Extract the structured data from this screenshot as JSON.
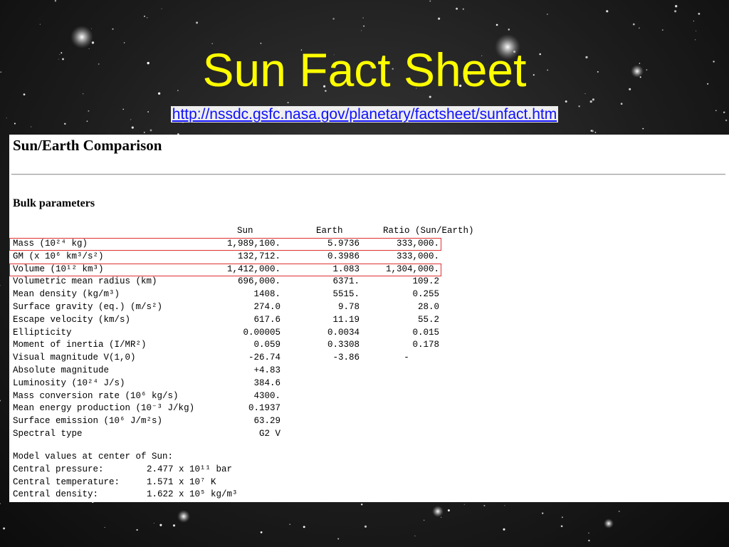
{
  "slide": {
    "title": "Sun Fact Sheet",
    "link": "http://nssdc.gsfc.nasa.gov/planetary/factsheet/sunfact.htm"
  },
  "document": {
    "title": "Sun/Earth Comparison",
    "section": "Bulk parameters",
    "columns": {
      "sun": "Sun",
      "earth": "Earth",
      "ratio": "Ratio (Sun/Earth)"
    },
    "rows": [
      {
        "param": "Mass (10²⁴ kg)",
        "sun": "1,989,100.",
        "earth": "5.9736",
        "ratio": "333,000.",
        "highlight": true
      },
      {
        "param": "GM (x 10⁶ km³/s²)",
        "sun": "132,712.",
        "earth": "0.3986",
        "ratio": "333,000.",
        "highlight": false
      },
      {
        "param": "Volume (10¹² km³)",
        "sun": "1,412,000.",
        "earth": "1.083",
        "ratio": "1,304,000.",
        "highlight": true
      },
      {
        "param": "Volumetric mean radius (km)",
        "sun": "696,000.",
        "earth": "6371.",
        "ratio": "109.2",
        "highlight": false
      },
      {
        "param": "Mean density (kg/m³)",
        "sun": "1408.",
        "earth": "5515.",
        "ratio": "0.255",
        "highlight": false
      },
      {
        "param": "Surface gravity (eq.) (m/s²)",
        "sun": "274.0",
        "earth": "9.78",
        "ratio": "28.0",
        "highlight": false
      },
      {
        "param": "Escape velocity (km/s)",
        "sun": "617.6",
        "earth": "11.19",
        "ratio": "55.2",
        "highlight": false
      },
      {
        "param": "Ellipticity",
        "sun": "0.00005",
        "earth": "0.0034",
        "ratio": "0.015",
        "highlight": false
      },
      {
        "param": "Moment of inertia (I/MR²)",
        "sun": "0.059",
        "earth": "0.3308",
        "ratio": "0.178",
        "highlight": false
      },
      {
        "param": "Visual magnitude V(1,0)",
        "sun": "-26.74",
        "earth": "-3.86",
        "ratio": "-",
        "highlight": false
      },
      {
        "param": "Absolute magnitude",
        "sun": "+4.83",
        "earth": "",
        "ratio": "",
        "highlight": false
      },
      {
        "param": "Luminosity (10²⁴ J/s)",
        "sun": "384.6",
        "earth": "",
        "ratio": "",
        "highlight": false
      },
      {
        "param": "Mass conversion rate (10⁶ kg/s)",
        "sun": "4300.",
        "earth": "",
        "ratio": "",
        "highlight": false
      },
      {
        "param": "Mean energy production (10⁻³ J/kg)",
        "sun": "0.1937",
        "earth": "",
        "ratio": "",
        "highlight": false
      },
      {
        "param": "Surface emission (10⁶ J/m²s)",
        "sun": "63.29",
        "earth": "",
        "ratio": "",
        "highlight": false
      },
      {
        "param": "Spectral type",
        "sun": "G2 V",
        "earth": "",
        "ratio": "",
        "highlight": false
      }
    ],
    "center_heading": "Model values at center of Sun:",
    "center_values": [
      {
        "label": "Central pressure:",
        "value": "2.477 x 10¹¹ bar"
      },
      {
        "label": "Central temperature:",
        "value": "1.571 x 10⁷ K"
      },
      {
        "label": "Central density:",
        "value": "1.622 x 10⁵ kg/m³"
      }
    ]
  },
  "colors": {
    "title": "#ffff00",
    "link": "#1010ff",
    "highlight_box": "#e03030"
  }
}
